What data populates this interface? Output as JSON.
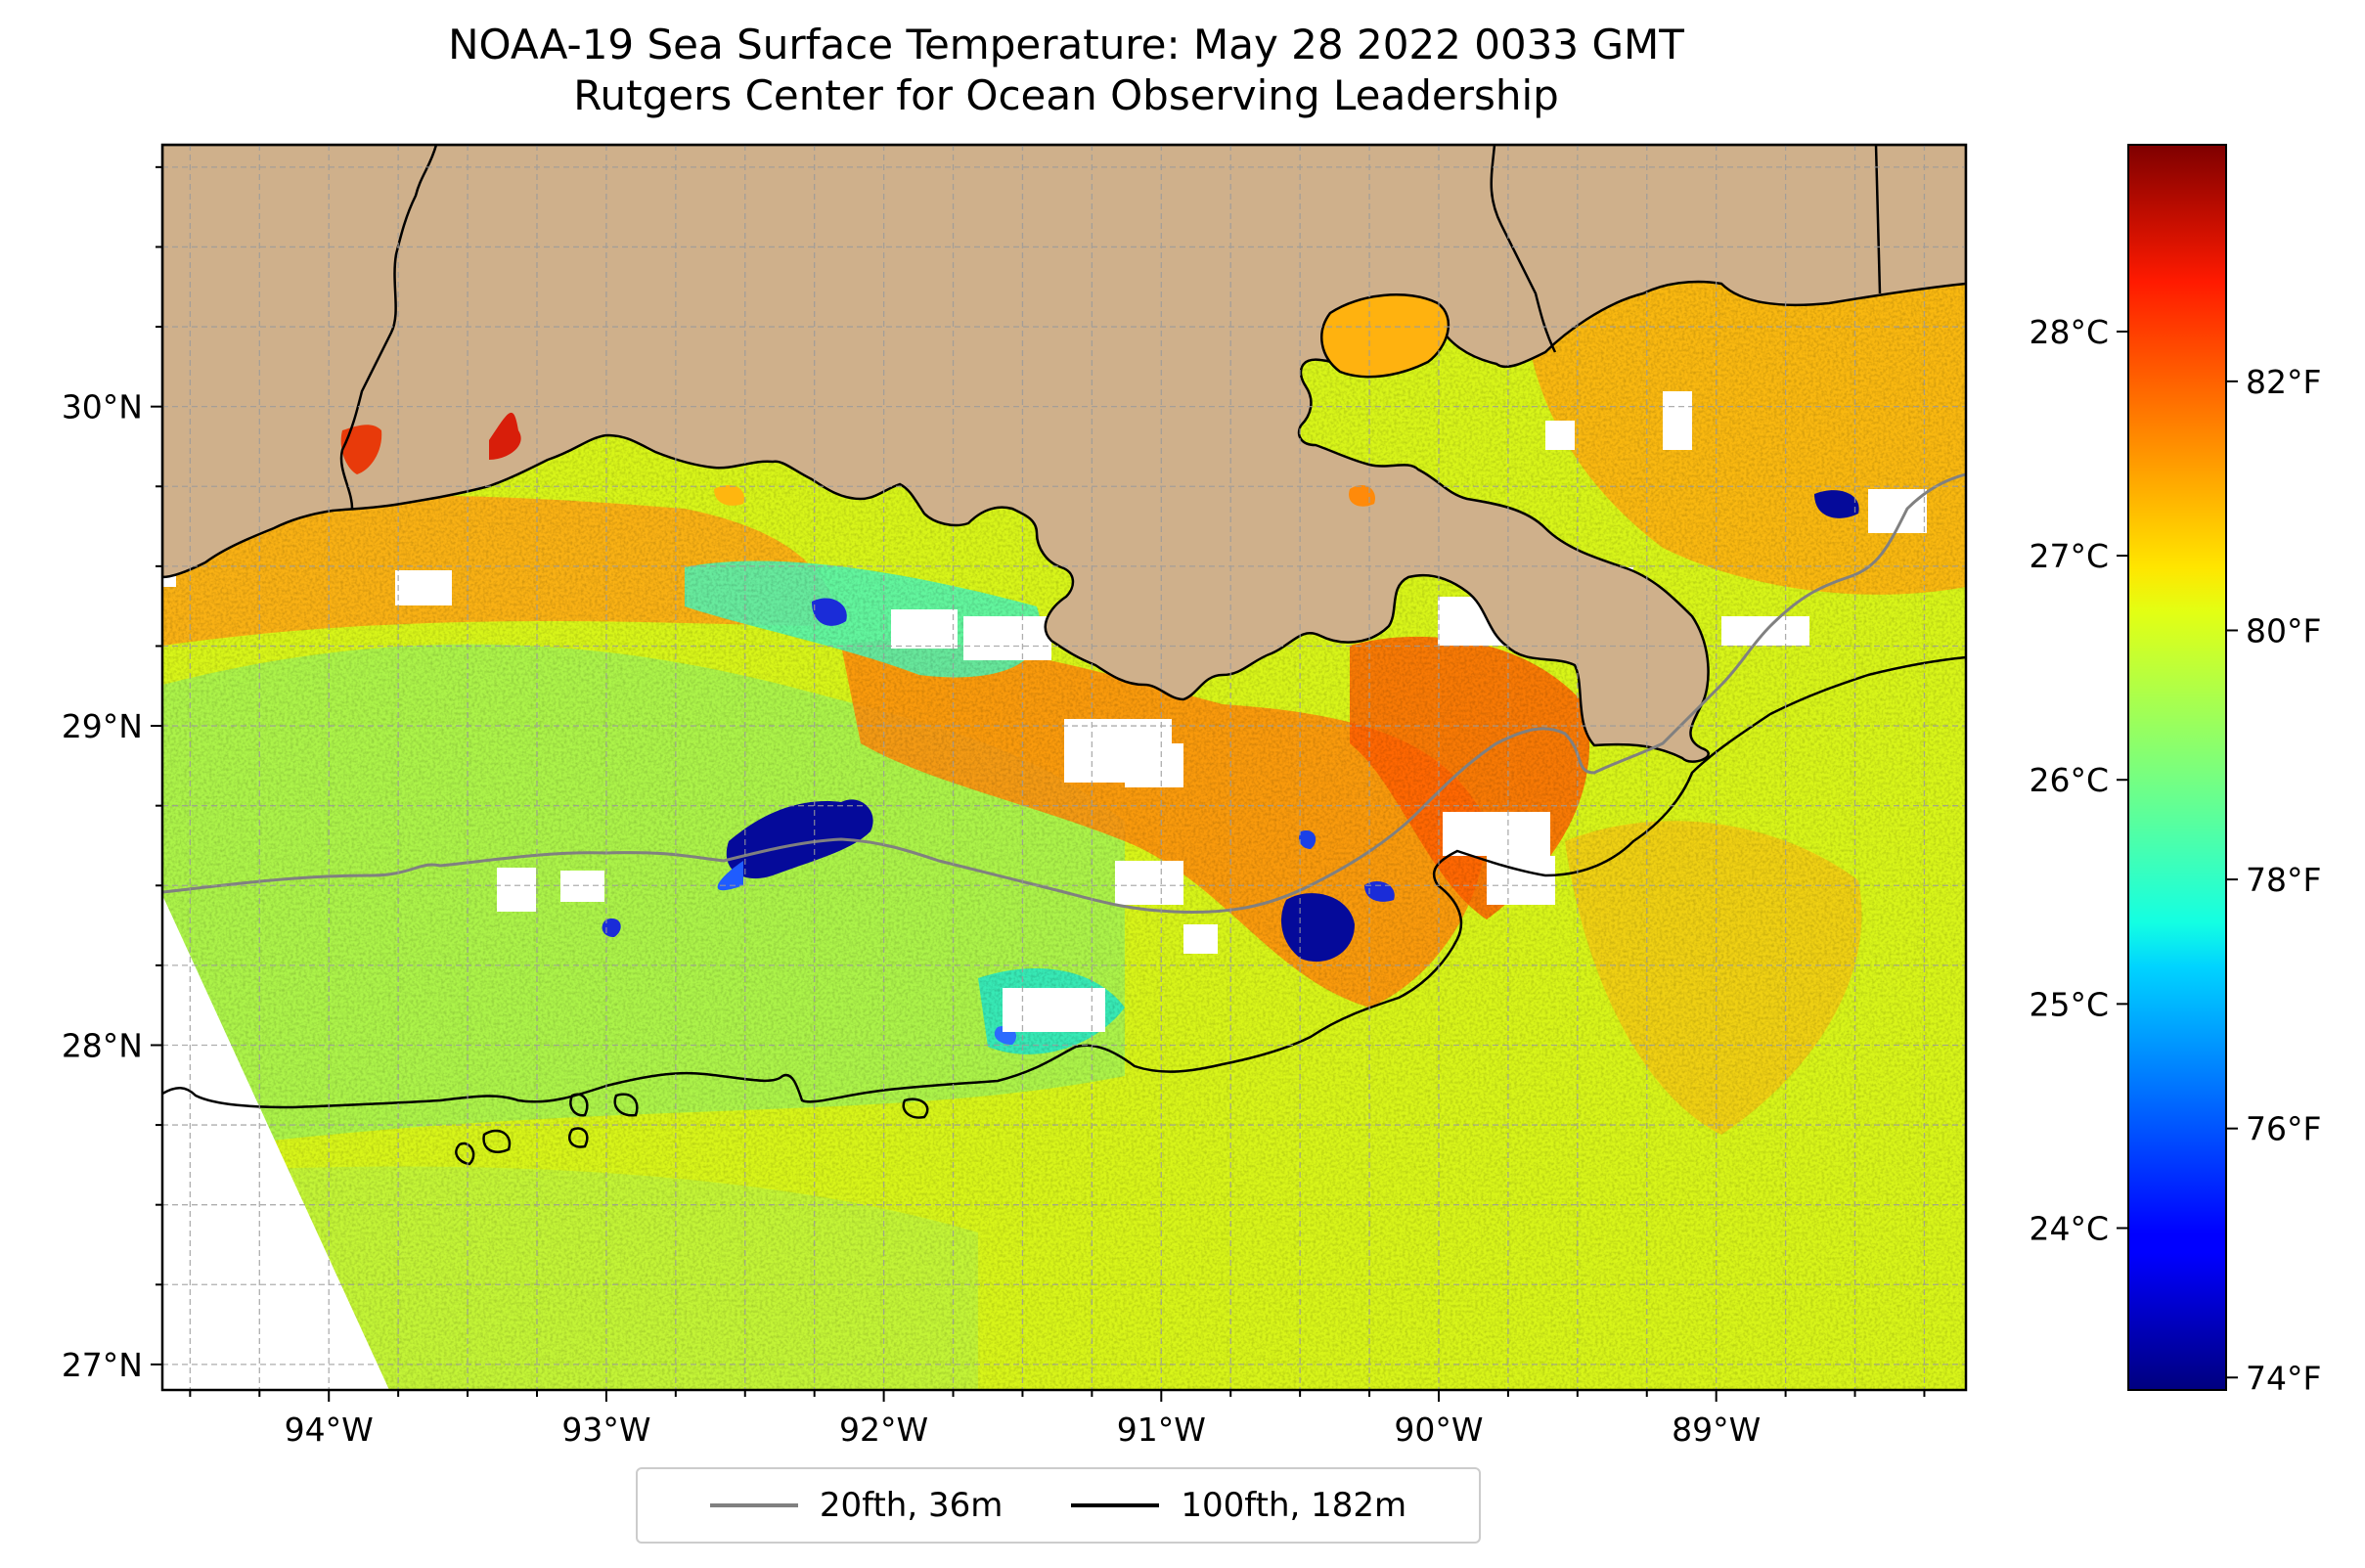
{
  "title": {
    "line1": "NOAA-19 Sea Surface Temperature: May 28 2022 0033 GMT",
    "line2": "Rutgers Center for Ocean Observing Leadership"
  },
  "map": {
    "lon_ticks": [
      "94°W",
      "93°W",
      "92°W",
      "91°W",
      "90°W",
      "89°W"
    ],
    "lat_ticks": [
      "30°N",
      "29°N",
      "28°N",
      "27°N"
    ],
    "lon_range": [
      -94.6,
      -88.1
    ],
    "lat_range": [
      26.92,
      30.82
    ],
    "land_color": "#cfb08b",
    "nodata_color": "#ffffff",
    "gridlines": "dashed",
    "region": "Louisiana shelf, northern Gulf of Mexico"
  },
  "colorbar": {
    "celsius_ticks": [
      "28°C",
      "27°C",
      "26°C",
      "25°C",
      "24°C"
    ],
    "fahrenheit_ticks": [
      "82°F",
      "80°F",
      "78°F",
      "76°F",
      "74°F"
    ],
    "range_f": [
      73.9,
      83.9
    ],
    "colormap": "jet"
  },
  "legend": {
    "items": [
      {
        "label": "20fth, 36m",
        "color": "#808080"
      },
      {
        "label": "100fth, 182m",
        "color": "#000000"
      }
    ],
    "placement": "bottom-center"
  }
}
